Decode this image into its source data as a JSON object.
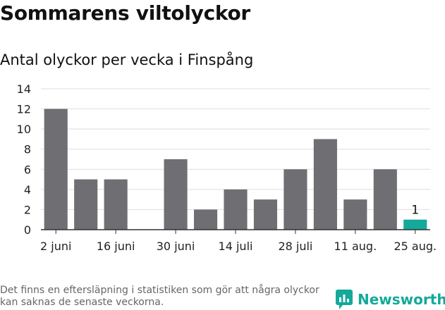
{
  "header": {
    "title": "Sommarens viltolyckor",
    "subtitle": "Antal olyckor per vecka i Finspång"
  },
  "chart_data": {
    "type": "bar",
    "title": "Sommarens viltolyckor",
    "subtitle": "Antal olyckor per vecka i Finspång",
    "xlabel": "",
    "ylabel": "",
    "ylim": [
      0,
      14
    ],
    "yticks": [
      0,
      2,
      4,
      6,
      8,
      10,
      12,
      14
    ],
    "grid": true,
    "categories": [
      "",
      "",
      "",
      "",
      "",
      "",
      "",
      "",
      "",
      "",
      "",
      "",
      ""
    ],
    "values": [
      12,
      5,
      5,
      0,
      7,
      2,
      4,
      3,
      6,
      9,
      3,
      6,
      1
    ],
    "xtick_labels": [
      {
        "index": 0,
        "label": "2 juni"
      },
      {
        "index": 2,
        "label": "16 juni"
      },
      {
        "index": 4,
        "label": "30 juni"
      },
      {
        "index": 6,
        "label": "14 juli"
      },
      {
        "index": 8,
        "label": "28 juli"
      },
      {
        "index": 10,
        "label": "11 aug."
      },
      {
        "index": 12,
        "label": "25 aug."
      }
    ],
    "data_labels": [
      {
        "index": 12,
        "label": "1"
      }
    ],
    "highlight_index": 12,
    "colors": {
      "bar": "#6f6e72",
      "highlight": "#14a99a",
      "grid": "#dddddd",
      "axis": "#333333"
    }
  },
  "footer": {
    "note": "Det finns en eftersläpning i statistiken som gör att några olyckor kan saknas de senaste veckorna.",
    "brand": "Newsworthy",
    "brand_icon": "newsworthy-logo-icon",
    "brand_color": "#14a99a"
  }
}
